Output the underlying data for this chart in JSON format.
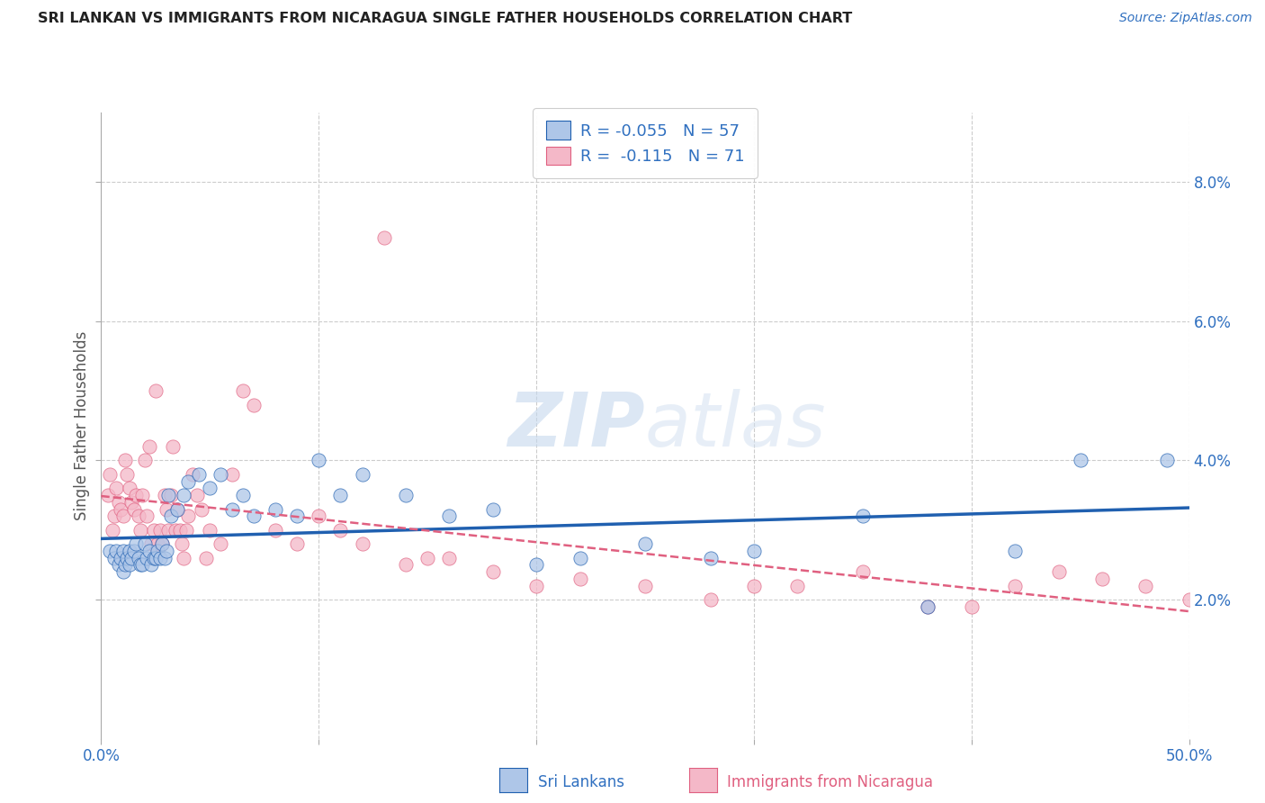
{
  "title": "SRI LANKAN VS IMMIGRANTS FROM NICARAGUA SINGLE FATHER HOUSEHOLDS CORRELATION CHART",
  "source": "Source: ZipAtlas.com",
  "ylabel": "Single Father Households",
  "xlim": [
    0.0,
    0.5
  ],
  "ylim": [
    0.0,
    0.09
  ],
  "x_ticks": [
    0.0,
    0.1,
    0.2,
    0.3,
    0.4,
    0.5
  ],
  "x_tick_labels": [
    "0.0%",
    "",
    "",
    "",
    "",
    "50.0%"
  ],
  "y_ticks": [
    0.02,
    0.04,
    0.06,
    0.08
  ],
  "y_tick_labels": [
    "2.0%",
    "4.0%",
    "6.0%",
    "8.0%"
  ],
  "R_sri": -0.055,
  "N_sri": 57,
  "R_nic": -0.115,
  "N_nic": 71,
  "color_sri": "#aec6e8",
  "color_nic": "#f4b8c8",
  "line_color_sri": "#2060b0",
  "line_color_nic": "#e06080",
  "watermark_zip": "ZIP",
  "watermark_atlas": "atlas",
  "background_color": "#ffffff",
  "grid_color": "#cccccc",
  "title_color": "#222222",
  "legend_text_color": "#3070c0",
  "sri_x": [
    0.004,
    0.006,
    0.007,
    0.008,
    0.009,
    0.01,
    0.01,
    0.011,
    0.012,
    0.013,
    0.013,
    0.014,
    0.015,
    0.016,
    0.017,
    0.018,
    0.019,
    0.02,
    0.021,
    0.022,
    0.023,
    0.024,
    0.025,
    0.026,
    0.027,
    0.028,
    0.029,
    0.03,
    0.031,
    0.032,
    0.035,
    0.038,
    0.04,
    0.045,
    0.05,
    0.055,
    0.06,
    0.065,
    0.07,
    0.08,
    0.09,
    0.1,
    0.11,
    0.12,
    0.14,
    0.16,
    0.18,
    0.2,
    0.22,
    0.25,
    0.28,
    0.3,
    0.35,
    0.38,
    0.42,
    0.45,
    0.49
  ],
  "sri_y": [
    0.027,
    0.026,
    0.027,
    0.025,
    0.026,
    0.024,
    0.027,
    0.025,
    0.026,
    0.027,
    0.025,
    0.026,
    0.027,
    0.028,
    0.026,
    0.025,
    0.025,
    0.028,
    0.026,
    0.027,
    0.025,
    0.026,
    0.026,
    0.027,
    0.026,
    0.028,
    0.026,
    0.027,
    0.035,
    0.032,
    0.033,
    0.035,
    0.037,
    0.038,
    0.036,
    0.038,
    0.033,
    0.035,
    0.032,
    0.033,
    0.032,
    0.04,
    0.035,
    0.038,
    0.035,
    0.032,
    0.033,
    0.025,
    0.026,
    0.028,
    0.026,
    0.027,
    0.032,
    0.019,
    0.027,
    0.04,
    0.04
  ],
  "nic_x": [
    0.003,
    0.004,
    0.005,
    0.006,
    0.007,
    0.008,
    0.009,
    0.01,
    0.011,
    0.012,
    0.013,
    0.014,
    0.015,
    0.016,
    0.017,
    0.018,
    0.019,
    0.02,
    0.021,
    0.022,
    0.023,
    0.024,
    0.025,
    0.026,
    0.027,
    0.028,
    0.029,
    0.03,
    0.031,
    0.032,
    0.033,
    0.034,
    0.035,
    0.036,
    0.037,
    0.038,
    0.039,
    0.04,
    0.042,
    0.044,
    0.046,
    0.048,
    0.05,
    0.055,
    0.06,
    0.065,
    0.07,
    0.08,
    0.09,
    0.1,
    0.11,
    0.12,
    0.14,
    0.16,
    0.18,
    0.2,
    0.22,
    0.25,
    0.28,
    0.3,
    0.32,
    0.35,
    0.38,
    0.4,
    0.42,
    0.44,
    0.46,
    0.48,
    0.5,
    0.13,
    0.15
  ],
  "nic_y": [
    0.035,
    0.038,
    0.03,
    0.032,
    0.036,
    0.034,
    0.033,
    0.032,
    0.04,
    0.038,
    0.036,
    0.034,
    0.033,
    0.035,
    0.032,
    0.03,
    0.035,
    0.04,
    0.032,
    0.042,
    0.028,
    0.03,
    0.05,
    0.028,
    0.03,
    0.028,
    0.035,
    0.033,
    0.03,
    0.035,
    0.042,
    0.03,
    0.033,
    0.03,
    0.028,
    0.026,
    0.03,
    0.032,
    0.038,
    0.035,
    0.033,
    0.026,
    0.03,
    0.028,
    0.038,
    0.05,
    0.048,
    0.03,
    0.028,
    0.032,
    0.03,
    0.028,
    0.025,
    0.026,
    0.024,
    0.022,
    0.023,
    0.022,
    0.02,
    0.022,
    0.022,
    0.024,
    0.019,
    0.019,
    0.022,
    0.024,
    0.023,
    0.022,
    0.02,
    0.072,
    0.026
  ]
}
